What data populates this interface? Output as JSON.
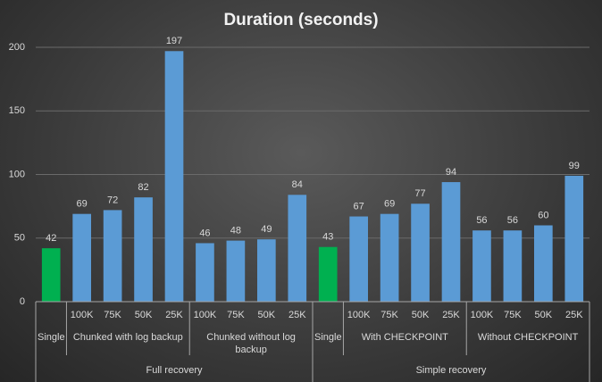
{
  "chart_data": {
    "type": "bar",
    "title": "Duration (seconds)",
    "ylim": [
      0,
      200
    ],
    "yticks": [
      0,
      50,
      100,
      150,
      200
    ],
    "grid": true,
    "groups": [
      {
        "name": "Full recovery",
        "subgroups": [
          {
            "name": "Single",
            "color": "#00b050",
            "categories": [
              null
            ],
            "values": [
              42
            ]
          },
          {
            "name": "Chunked with log backup",
            "color": "#5b9bd5",
            "categories": [
              "100K",
              "75K",
              "50K",
              "25K"
            ],
            "values": [
              69,
              72,
              82,
              197
            ]
          },
          {
            "name": "Chunked without log backup",
            "color": "#5b9bd5",
            "categories": [
              "100K",
              "75K",
              "50K",
              "25K"
            ],
            "values": [
              46,
              48,
              49,
              84
            ]
          }
        ]
      },
      {
        "name": "Simple recovery",
        "subgroups": [
          {
            "name": "Single",
            "color": "#00b050",
            "categories": [
              null
            ],
            "values": [
              43
            ]
          },
          {
            "name": "With CHECKPOINT",
            "color": "#5b9bd5",
            "categories": [
              "100K",
              "75K",
              "50K",
              "25K"
            ],
            "values": [
              67,
              69,
              77,
              94
            ]
          },
          {
            "name": "Without CHECKPOINT",
            "color": "#5b9bd5",
            "categories": [
              "100K",
              "75K",
              "50K",
              "25K"
            ],
            "values": [
              56,
              56,
              60,
              99
            ]
          }
        ]
      }
    ]
  }
}
